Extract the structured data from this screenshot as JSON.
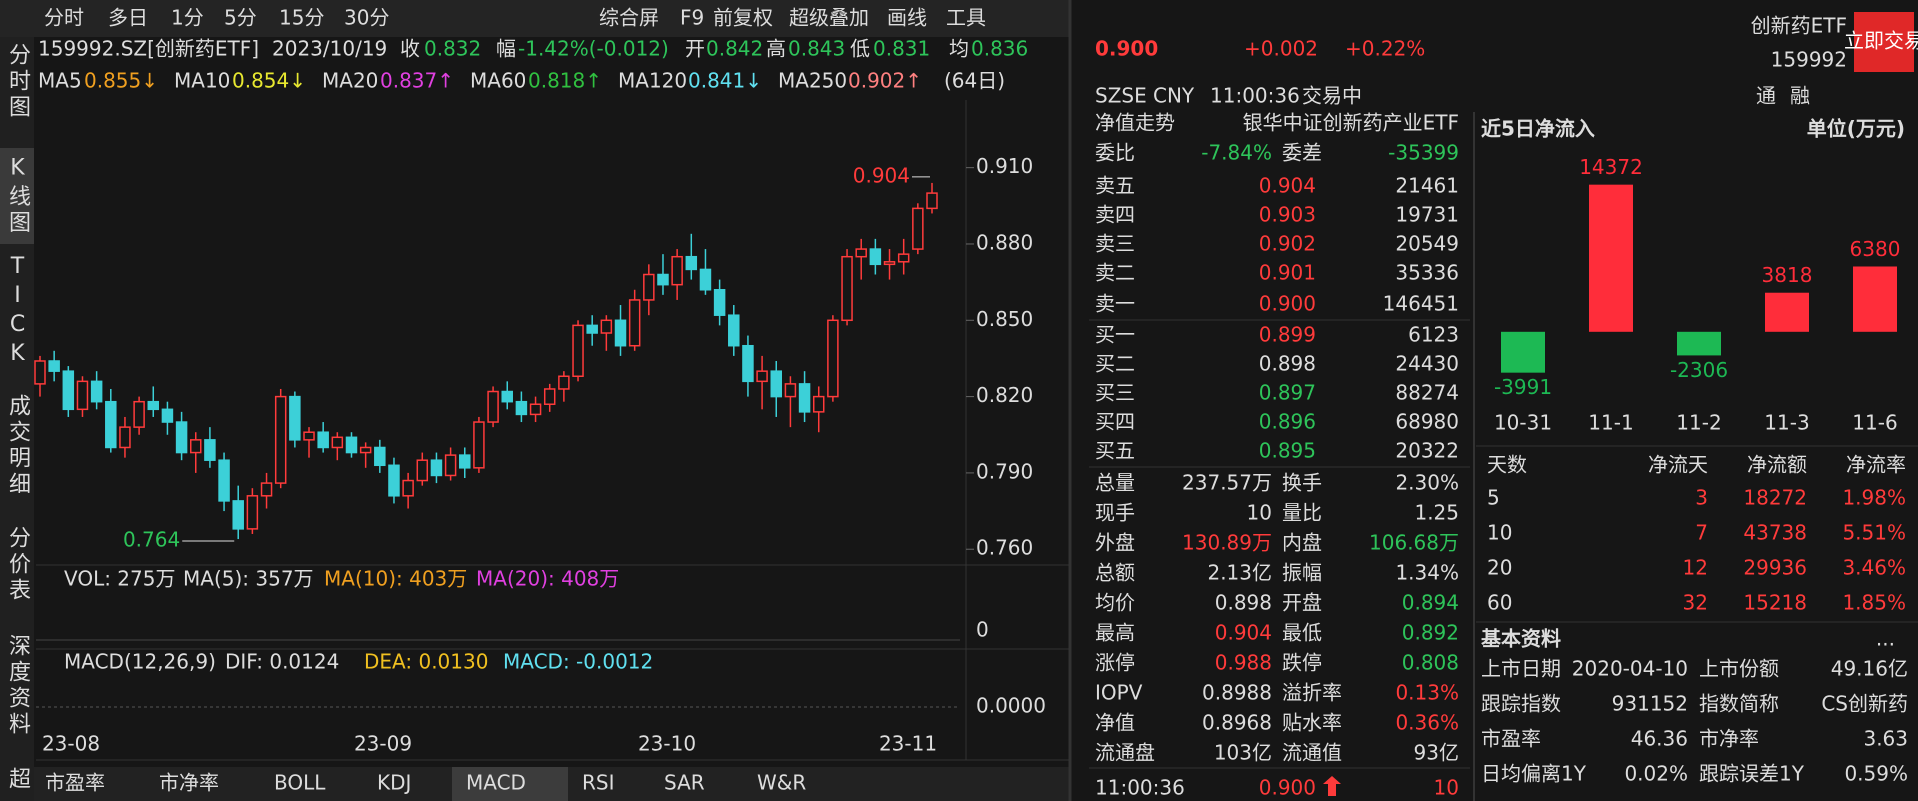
{
  "toolbar": {
    "periods": [
      "分时",
      "多日",
      "1分",
      "5分",
      "15分",
      "30分"
    ],
    "tools": [
      "综合屏",
      "F9",
      "前复权",
      "超级叠加",
      "画线",
      "工具"
    ]
  },
  "side_tabs": [
    "分时图",
    "K线图",
    "TICK",
    "成交明细",
    "分价表",
    "深度资料",
    "超"
  ],
  "info": [
    "159992.SZ[创新药ETF]",
    "2023/10/19",
    "收",
    "0.832",
    "幅",
    "-1.42%(-0.012)",
    "开",
    "0.842",
    "高",
    "0.843",
    "低",
    "0.831",
    "均",
    "0.836"
  ],
  "ma_legend": [
    {
      "name": "MA5",
      "value": "0.855↓",
      "color": "#f0a020"
    },
    {
      "name": "MA10",
      "value": "0.854↓",
      "color": "#e8e830"
    },
    {
      "name": "MA20",
      "value": "0.837↑",
      "color": "#e040e0"
    },
    {
      "name": "MA60",
      "value": "0.818↑",
      "color": "#30c040"
    },
    {
      "name": "MA120",
      "value": "0.841↓",
      "color": "#60e0f0"
    },
    {
      "name": "MA250",
      "value": "0.902↑",
      "color": "#ff8080"
    }
  ],
  "kline": {
    "type": "candlestick",
    "period_label": "(64日)",
    "ylim": [
      0.7538,
      0.9366
    ],
    "yticks": [
      {
        "value": 0.91,
        "label": "0.910"
      },
      {
        "value": 0.88,
        "label": "0.880"
      },
      {
        "value": 0.85,
        "label": "0.850"
      },
      {
        "value": 0.82,
        "label": "0.820"
      },
      {
        "value": 0.79,
        "label": "0.790"
      },
      {
        "value": 0.76,
        "label": "0.760"
      }
    ],
    "up_color": "#ff3b3b",
    "down_color": "#3cd0d8",
    "high_label": "0.904",
    "low_label": "0.764",
    "xticks": [
      "23-08",
      "23-09",
      "23-10",
      "23-11"
    ],
    "candles": [
      [
        0.825,
        0.836,
        0.82,
        0.834
      ],
      [
        0.834,
        0.838,
        0.826,
        0.83
      ],
      [
        0.83,
        0.832,
        0.812,
        0.815
      ],
      [
        0.815,
        0.828,
        0.812,
        0.826
      ],
      [
        0.826,
        0.83,
        0.815,
        0.818
      ],
      [
        0.818,
        0.823,
        0.798,
        0.8
      ],
      [
        0.8,
        0.812,
        0.796,
        0.808
      ],
      [
        0.808,
        0.82,
        0.805,
        0.818
      ],
      [
        0.818,
        0.824,
        0.812,
        0.815
      ],
      [
        0.815,
        0.818,
        0.805,
        0.81
      ],
      [
        0.81,
        0.814,
        0.795,
        0.798
      ],
      [
        0.798,
        0.806,
        0.79,
        0.803
      ],
      [
        0.803,
        0.808,
        0.792,
        0.795
      ],
      [
        0.795,
        0.798,
        0.775,
        0.779
      ],
      [
        0.779,
        0.785,
        0.764,
        0.768
      ],
      [
        0.768,
        0.784,
        0.766,
        0.781
      ],
      [
        0.781,
        0.79,
        0.776,
        0.786
      ],
      [
        0.786,
        0.823,
        0.784,
        0.82
      ],
      [
        0.82,
        0.822,
        0.8,
        0.803
      ],
      [
        0.803,
        0.808,
        0.796,
        0.806
      ],
      [
        0.806,
        0.81,
        0.798,
        0.8
      ],
      [
        0.8,
        0.806,
        0.795,
        0.804
      ],
      [
        0.804,
        0.806,
        0.796,
        0.798
      ],
      [
        0.798,
        0.802,
        0.792,
        0.8
      ],
      [
        0.8,
        0.803,
        0.79,
        0.793
      ],
      [
        0.793,
        0.796,
        0.778,
        0.781
      ],
      [
        0.781,
        0.79,
        0.776,
        0.787
      ],
      [
        0.787,
        0.798,
        0.785,
        0.795
      ],
      [
        0.795,
        0.798,
        0.786,
        0.789
      ],
      [
        0.789,
        0.8,
        0.787,
        0.797
      ],
      [
        0.797,
        0.8,
        0.788,
        0.792
      ],
      [
        0.792,
        0.812,
        0.79,
        0.81
      ],
      [
        0.81,
        0.824,
        0.808,
        0.822
      ],
      [
        0.822,
        0.826,
        0.815,
        0.818
      ],
      [
        0.818,
        0.822,
        0.81,
        0.813
      ],
      [
        0.813,
        0.82,
        0.81,
        0.817
      ],
      [
        0.817,
        0.825,
        0.814,
        0.823
      ],
      [
        0.823,
        0.83,
        0.818,
        0.828
      ],
      [
        0.828,
        0.85,
        0.826,
        0.848
      ],
      [
        0.848,
        0.852,
        0.84,
        0.845
      ],
      [
        0.845,
        0.852,
        0.838,
        0.85
      ],
      [
        0.85,
        0.856,
        0.836,
        0.84
      ],
      [
        0.84,
        0.862,
        0.838,
        0.858
      ],
      [
        0.858,
        0.872,
        0.852,
        0.868
      ],
      [
        0.868,
        0.876,
        0.86,
        0.864
      ],
      [
        0.864,
        0.878,
        0.858,
        0.875
      ],
      [
        0.875,
        0.884,
        0.866,
        0.87
      ],
      [
        0.87,
        0.878,
        0.86,
        0.862
      ],
      [
        0.862,
        0.866,
        0.848,
        0.852
      ],
      [
        0.852,
        0.856,
        0.836,
        0.84
      ],
      [
        0.84,
        0.844,
        0.82,
        0.826
      ],
      [
        0.826,
        0.836,
        0.815,
        0.83
      ],
      [
        0.83,
        0.834,
        0.812,
        0.82
      ],
      [
        0.82,
        0.828,
        0.808,
        0.825
      ],
      [
        0.825,
        0.83,
        0.81,
        0.814
      ],
      [
        0.814,
        0.824,
        0.806,
        0.82
      ],
      [
        0.82,
        0.852,
        0.818,
        0.85
      ],
      [
        0.85,
        0.878,
        0.848,
        0.875
      ],
      [
        0.875,
        0.882,
        0.866,
        0.878
      ],
      [
        0.878,
        0.882,
        0.868,
        0.872
      ],
      [
        0.872,
        0.878,
        0.866,
        0.873
      ],
      [
        0.873,
        0.882,
        0.868,
        0.876
      ],
      [
        0.878,
        0.896,
        0.876,
        0.894
      ],
      [
        0.894,
        0.904,
        0.892,
        0.9
      ]
    ]
  },
  "volume": {
    "legend": [
      {
        "text": "VOL: 275万",
        "color": "#dddddd"
      },
      {
        "text": "MA(5): 357万",
        "color": "#dddddd"
      },
      {
        "text": "MA(10): 403万",
        "color": "#f0a020"
      },
      {
        "text": "MA(20): 408万",
        "color": "#e040e0"
      }
    ],
    "yticks": [
      0
    ]
  },
  "macd": {
    "legend": [
      {
        "text": "MACD(12,26,9)",
        "color": "#dddddd"
      },
      {
        "text": "DIF: 0.0124",
        "color": "#dddddd"
      },
      {
        "text": "DEA: 0.0130",
        "color": "#f0c020"
      },
      {
        "text": "MACD: -0.0012",
        "color": "#60e0f0"
      }
    ],
    "yticks": [
      {
        "value": 0,
        "label": "0.0000"
      }
    ]
  },
  "bottom_tabs": [
    "市盈率",
    "市净率",
    "BOLL",
    "KDJ",
    "MACD",
    "RSI",
    "SAR",
    "W&R"
  ],
  "quote": {
    "price": "0.900",
    "change": "+0.002",
    "change_pct": "+0.22%",
    "name": "创新药ETF",
    "code": "159992",
    "button": "立即交易",
    "exchange": "SZSE",
    "currency": "CNY",
    "time": "11:00:36",
    "status": "交易中",
    "flags": [
      "通",
      "融"
    ]
  },
  "book": {
    "header": [
      "净值走势",
      "银华中证创新药产业ETF"
    ],
    "ratio": [
      "委比",
      "-7.84%",
      "委差",
      "-35399"
    ],
    "asks": [
      [
        "卖五",
        "0.904",
        21461
      ],
      [
        "卖四",
        "0.903",
        19731
      ],
      [
        "卖三",
        "0.902",
        20549
      ],
      [
        "卖二",
        "0.901",
        35336
      ],
      [
        "卖一",
        "0.900",
        146451
      ]
    ],
    "bids": [
      [
        "买一",
        "0.899",
        6123
      ],
      [
        "买二",
        "0.898",
        24430
      ],
      [
        "买三",
        "0.897",
        88274
      ],
      [
        "买四",
        "0.896",
        68980
      ],
      [
        "买五",
        "0.895",
        20322
      ]
    ],
    "stats": [
      [
        "总量",
        "237.57万",
        "换手",
        "2.30%"
      ],
      [
        "现手",
        "10",
        "量比",
        "1.25"
      ],
      [
        "外盘",
        "130.89万",
        "内盘",
        "106.68万"
      ],
      [
        "总额",
        "2.13亿",
        "振幅",
        "1.34%"
      ],
      [
        "均价",
        "0.898",
        "开盘",
        "0.894"
      ],
      [
        "最高",
        "0.904",
        "最低",
        "0.892"
      ],
      [
        "涨停",
        "0.988",
        "跌停",
        "0.808"
      ],
      [
        "IOPV",
        "0.8988",
        "溢折率",
        "0.13%"
      ],
      [
        "净值",
        "0.8968",
        "贴水率",
        "0.36%"
      ],
      [
        "流通盘",
        "103亿",
        "流通值",
        "93亿"
      ]
    ],
    "last_tick": [
      "11:00:36",
      "0.900",
      "10"
    ]
  },
  "inflow": {
    "type": "bar",
    "title": "近5日净流入",
    "unit": "单位(万元)",
    "categories": [
      "10-31",
      "11-1",
      "11-2",
      "11-3",
      "11-6"
    ],
    "values": [
      -3991,
      14372,
      -2306,
      3818,
      6380
    ],
    "ylim": [
      -5000,
      16000
    ],
    "up_color": "#ff2d3a",
    "down_color": "#1db954"
  },
  "flow_table": {
    "header": [
      "天数",
      "净流天",
      "净流额",
      "净流率"
    ],
    "rows": [
      [
        5,
        3,
        18272,
        "1.98%"
      ],
      [
        10,
        7,
        43738,
        "5.51%"
      ],
      [
        20,
        12,
        29936,
        "3.46%"
      ],
      [
        60,
        32,
        15218,
        "1.85%"
      ]
    ]
  },
  "basic": {
    "title": "基本资料",
    "more": "...",
    "rows": [
      [
        "上市日期",
        "2020-04-10",
        "上市份额",
        "49.16亿"
      ],
      [
        "跟踪指数",
        "931152",
        "指数简称",
        "CS创新药"
      ],
      [
        "市盈率",
        "46.36",
        "市净率",
        "3.63"
      ],
      [
        "日均偏离1Y",
        "0.02%",
        "跟踪误差1Y",
        "0.59%"
      ]
    ]
  }
}
